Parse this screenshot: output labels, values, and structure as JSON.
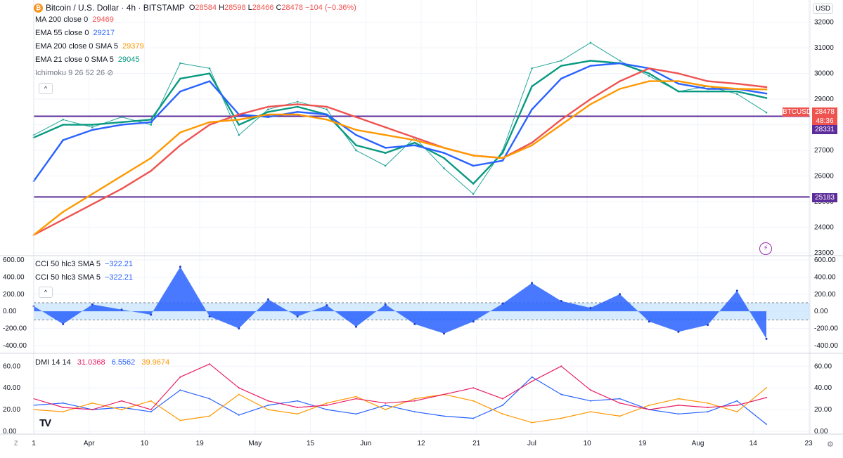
{
  "header": {
    "title": "Bitcoin / U.S. Dollar · 4h · BITSTAMP",
    "ohlc": [
      {
        "key": "O",
        "value": "28584"
      },
      {
        "key": "H",
        "value": "28598"
      },
      {
        "key": "L",
        "value": "28466"
      },
      {
        "key": "C",
        "value": "28478"
      }
    ],
    "change": "−104 (−0.36%)",
    "currency": "USD"
  },
  "indicators": [
    {
      "label": "MA 200 close 0",
      "value": "29469",
      "color": "#ef5350"
    },
    {
      "label": "EMA 55 close 0",
      "value": "29217",
      "color": "#2962ff"
    },
    {
      "label": "EMA 200 close 0 SMA 5",
      "value": "29379",
      "color": "#ff9800"
    },
    {
      "label": "EMA 21 close 0 SMA 5",
      "value": "29045",
      "color": "#089981"
    },
    {
      "label": "Ichimoku 9 26 52 26",
      "value": "",
      "color": "#787b86"
    }
  ],
  "cci_legend": [
    {
      "label": "CCI 50 hlc3 SMA 5",
      "value": "−322.21",
      "color": "#2962ff"
    },
    {
      "label": "CCI 50 hlc3 SMA 5",
      "value": "−322.21",
      "color": "#2962ff"
    }
  ],
  "dmi_legend": {
    "label": "DMI 14 14",
    "values": [
      {
        "value": "31.0368",
        "color": "#e91e63"
      },
      {
        "value": "6.5562",
        "color": "#2962ff"
      },
      {
        "value": "39.9674",
        "color": "#ff9800"
      }
    ]
  },
  "price_tags": [
    {
      "text": "BTCUSD",
      "color": "#ef5350"
    },
    {
      "text": "28478",
      "color": "#ef5350"
    },
    {
      "text": "48:36",
      "color": "#ef5350"
    },
    {
      "text": "28331",
      "color": "#5b2c9a"
    },
    {
      "text": "25183",
      "color": "#5b2c9a"
    }
  ],
  "chart_data": [
    {
      "type": "line",
      "name": "price",
      "y_ticks": [
        23000,
        24000,
        25000,
        26000,
        27000,
        28000,
        29000,
        30000,
        31000,
        32000
      ],
      "ylim": [
        23000,
        32100
      ],
      "x_ticks": [
        "1",
        "Apr",
        "10",
        "19",
        "May",
        "15",
        "Jun",
        "12",
        "21",
        "Jul",
        "10",
        "19",
        "Aug",
        "14",
        "23"
      ],
      "horizontal_levels": [
        28331,
        25183
      ],
      "x": [
        0,
        4,
        8,
        12,
        16,
        20,
        24,
        28,
        32,
        36,
        40,
        44,
        48,
        52,
        56,
        60,
        64,
        68,
        72,
        76,
        80,
        84,
        88,
        92,
        96,
        100
      ],
      "series": [
        {
          "name": "BTCUSD",
          "color": "#26a69a",
          "values": [
            27600,
            28200,
            27900,
            28300,
            28000,
            30400,
            30200,
            27600,
            28600,
            28900,
            28600,
            27000,
            26400,
            27500,
            26300,
            25300,
            27000,
            30200,
            30500,
            31200,
            30500,
            29900,
            29300,
            29500,
            29200,
            28478
          ]
        },
        {
          "name": "EMA 21",
          "color": "#089981",
          "values": [
            27500,
            28000,
            28000,
            28100,
            28200,
            29800,
            30000,
            28000,
            28500,
            28700,
            28400,
            27200,
            26900,
            27300,
            26700,
            25700,
            26900,
            29500,
            30300,
            30500,
            30400,
            30000,
            29300,
            29300,
            29300,
            29045
          ]
        },
        {
          "name": "EMA 55",
          "color": "#2962ff",
          "values": [
            25800,
            27400,
            27800,
            28000,
            28100,
            29300,
            29700,
            28400,
            28300,
            28500,
            28400,
            27600,
            27100,
            27200,
            26900,
            26400,
            26600,
            28600,
            29800,
            30300,
            30400,
            30200,
            29600,
            29400,
            29400,
            29217
          ]
        },
        {
          "name": "MA 200",
          "color": "#ef5350",
          "values": [
            23700,
            24300,
            24900,
            25500,
            26200,
            27200,
            28000,
            28400,
            28700,
            28800,
            28700,
            28300,
            27900,
            27500,
            27100,
            26800,
            26700,
            27300,
            28200,
            29000,
            29700,
            30200,
            30000,
            29700,
            29600,
            29469
          ]
        },
        {
          "name": "EMA 200",
          "color": "#ff9800",
          "values": [
            23700,
            24600,
            25300,
            26000,
            26700,
            27700,
            28100,
            28200,
            28400,
            28400,
            28200,
            27800,
            27600,
            27400,
            27100,
            26800,
            26700,
            27200,
            28000,
            28800,
            29400,
            29700,
            29700,
            29500,
            29400,
            29379
          ]
        }
      ]
    },
    {
      "type": "area",
      "name": "CCI",
      "y_ticks": [
        -400,
        -200,
        0,
        200,
        400,
        600
      ],
      "ylim": [
        -450,
        600
      ],
      "band": [
        -100,
        100
      ],
      "x": [
        0,
        4,
        8,
        12,
        16,
        20,
        24,
        28,
        32,
        36,
        40,
        44,
        48,
        52,
        56,
        60,
        64,
        68,
        72,
        76,
        80,
        84,
        88,
        92,
        96,
        100
      ],
      "values": [
        60,
        -150,
        80,
        20,
        -40,
        520,
        -60,
        -200,
        140,
        -60,
        70,
        -180,
        80,
        -150,
        -260,
        -120,
        90,
        330,
        120,
        40,
        200,
        -120,
        -240,
        -160,
        240,
        -322
      ]
    },
    {
      "type": "line",
      "name": "DMI",
      "y_ticks": [
        0,
        20,
        40,
        60
      ],
      "ylim": [
        0,
        66
      ],
      "x": [
        0,
        4,
        8,
        12,
        16,
        20,
        24,
        28,
        32,
        36,
        40,
        44,
        48,
        52,
        56,
        60,
        64,
        68,
        72,
        76,
        80,
        84,
        88,
        92,
        96,
        100
      ],
      "series": [
        {
          "name": "+DI",
          "color": "#2962ff",
          "values": [
            24,
            26,
            20,
            22,
            18,
            38,
            30,
            15,
            24,
            28,
            20,
            16,
            24,
            18,
            14,
            12,
            24,
            50,
            34,
            28,
            30,
            20,
            16,
            18,
            28,
            6.5562
          ]
        },
        {
          "name": "-DI",
          "color": "#ff9800",
          "values": [
            20,
            18,
            26,
            20,
            28,
            10,
            14,
            34,
            20,
            16,
            26,
            32,
            20,
            30,
            34,
            28,
            16,
            8,
            12,
            18,
            14,
            24,
            30,
            26,
            18,
            39.9674
          ]
        },
        {
          "name": "ADX",
          "color": "#e91e63",
          "values": [
            30,
            22,
            20,
            28,
            20,
            50,
            62,
            40,
            28,
            22,
            24,
            30,
            26,
            28,
            34,
            40,
            30,
            46,
            60,
            38,
            26,
            20,
            24,
            22,
            24,
            31.0368
          ]
        }
      ]
    }
  ]
}
